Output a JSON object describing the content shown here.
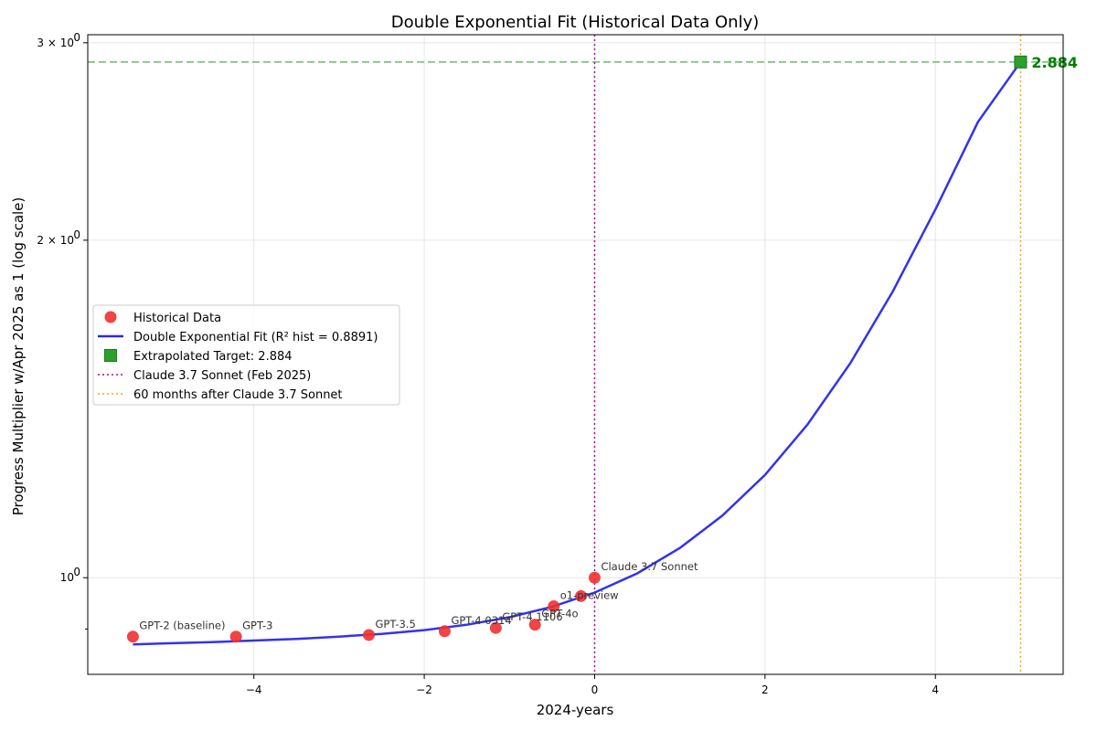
{
  "chart_data": {
    "type": "line",
    "title": "Double Exponential Fit (Historical Data Only)",
    "xlabel": "2024-years",
    "ylabel": "Progress Multiplier w/Apr 2025 as 1 (log scale)",
    "y_scale": "log",
    "xlim": [
      -5.95,
      5.5
    ],
    "ylim": [
      0.82,
      3.05
    ],
    "x_ticks": [
      -4,
      -2,
      0,
      2,
      4
    ],
    "x_tick_labels": [
      "−4",
      "−2",
      "0",
      "2",
      "4"
    ],
    "y_major_ticks": [
      1,
      2,
      3
    ],
    "y_tick_labels": [
      "10",
      "2 × 10",
      "3 × 10"
    ],
    "y_tick_label_exponent": "0",
    "y_minor_ticks": [
      0.9
    ],
    "grid": true,
    "legend_position": "center-left",
    "series": [
      {
        "name": "Historical Data",
        "kind": "scatter",
        "color": "#f03030",
        "points": [
          {
            "x": -5.42,
            "y": 0.886,
            "label": "GPT-2 (baseline)"
          },
          {
            "x": -4.21,
            "y": 0.886,
            "label": "GPT-3"
          },
          {
            "x": -2.65,
            "y": 0.889,
            "label": "GPT-3.5"
          },
          {
            "x": -1.76,
            "y": 0.896,
            "label": "GPT-4 0314"
          },
          {
            "x": -1.16,
            "y": 0.902,
            "label": "GPT-4 1106"
          },
          {
            "x": -0.7,
            "y": 0.908,
            "label": "GPT-4o"
          },
          {
            "x": -0.48,
            "y": 0.943,
            "label": "o1-preview"
          },
          {
            "x": -0.16,
            "y": 0.963,
            "label": ""
          },
          {
            "x": 0.0,
            "y": 1.0,
            "label": "Claude 3.7 Sonnet"
          }
        ]
      },
      {
        "name": "Double Exponential Fit (R² hist = 0.8891)",
        "kind": "line",
        "color": "#2828e8",
        "x": [
          -5.42,
          -5.0,
          -4.5,
          -4.0,
          -3.5,
          -3.0,
          -2.5,
          -2.0,
          -1.5,
          -1.0,
          -0.5,
          0.0,
          0.5,
          1.0,
          1.5,
          2.0,
          2.5,
          3.0,
          3.5,
          4.0,
          4.5,
          5.0
        ],
        "y": [
          0.872,
          0.874,
          0.876,
          0.879,
          0.882,
          0.886,
          0.891,
          0.898,
          0.908,
          0.922,
          0.942,
          0.97,
          1.009,
          1.063,
          1.136,
          1.235,
          1.37,
          1.553,
          1.8,
          2.13,
          2.55,
          2.884
        ]
      },
      {
        "name": "Extrapolated Target: 2.884",
        "kind": "marker",
        "color": "#2ca02c",
        "x": 5.0,
        "y": 2.884,
        "value_label": "2.884"
      }
    ],
    "reference_lines": [
      {
        "orientation": "vertical",
        "value": 0.0,
        "style": "dotted",
        "color": "#b000b0",
        "name": "Claude 3.7 Sonnet (Feb 2025)"
      },
      {
        "orientation": "vertical",
        "value": 5.0,
        "style": "dotted",
        "color": "#ffa500",
        "name": "60 months after Claude 3.7 Sonnet"
      },
      {
        "orientation": "horizontal",
        "value": 2.884,
        "style": "dashed",
        "color": "#2ca02c",
        "name": ""
      }
    ]
  }
}
